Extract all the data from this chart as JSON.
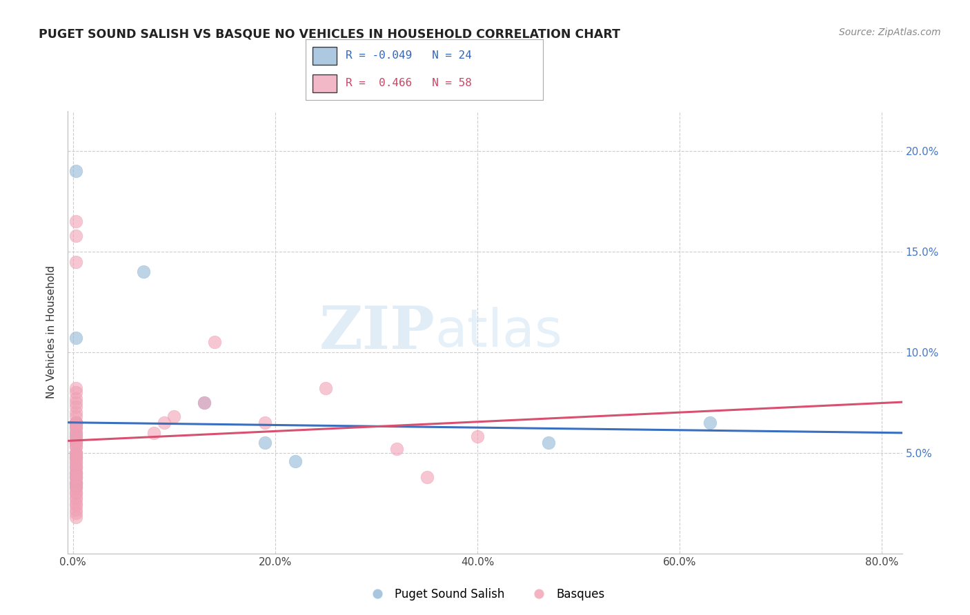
{
  "title": "PUGET SOUND SALISH VS BASQUE NO VEHICLES IN HOUSEHOLD CORRELATION CHART",
  "source": "Source: ZipAtlas.com",
  "ylabel": "No Vehicles in Household",
  "ylim": [
    0.0,
    0.22
  ],
  "xlim": [
    -0.005,
    0.82
  ],
  "yticks": [
    0.05,
    0.1,
    0.15,
    0.2
  ],
  "ytick_labels": [
    "5.0%",
    "10.0%",
    "15.0%",
    "20.0%"
  ],
  "xticks": [
    0.0,
    0.2,
    0.4,
    0.6,
    0.8
  ],
  "xtick_labels": [
    "0.0%",
    "20.0%",
    "40.0%",
    "60.0%",
    "80.0%"
  ],
  "grid_color": "#cccccc",
  "blue_color": "#92b8d8",
  "pink_color": "#f0a0b5",
  "blue_line_color": "#3a6fbf",
  "pink_line_color": "#d85070",
  "blue_R": -0.049,
  "blue_N": 24,
  "pink_R": 0.466,
  "pink_N": 58,
  "legend_label_blue": "Puget Sound Salish",
  "legend_label_pink": "Basques",
  "watermark_zip": "ZIP",
  "watermark_atlas": "atlas",
  "blue_scatter_x": [
    0.003,
    0.003,
    0.003,
    0.003,
    0.003,
    0.003,
    0.003,
    0.003,
    0.003,
    0.003,
    0.003,
    0.003,
    0.003,
    0.003,
    0.003,
    0.003,
    0.07,
    0.13,
    0.19,
    0.22,
    0.47,
    0.63,
    0.003,
    0.003
  ],
  "blue_scatter_y": [
    0.19,
    0.107,
    0.065,
    0.065,
    0.065,
    0.065,
    0.063,
    0.06,
    0.058,
    0.055,
    0.05,
    0.048,
    0.043,
    0.04,
    0.038,
    0.035,
    0.14,
    0.075,
    0.055,
    0.046,
    0.055,
    0.065,
    0.035,
    0.033
  ],
  "pink_scatter_x": [
    0.003,
    0.003,
    0.003,
    0.003,
    0.003,
    0.003,
    0.003,
    0.003,
    0.003,
    0.003,
    0.003,
    0.003,
    0.003,
    0.003,
    0.003,
    0.003,
    0.003,
    0.003,
    0.003,
    0.003,
    0.003,
    0.003,
    0.003,
    0.003,
    0.003,
    0.003,
    0.003,
    0.003,
    0.003,
    0.003,
    0.003,
    0.003,
    0.003,
    0.003,
    0.003,
    0.003,
    0.003,
    0.003,
    0.003,
    0.003,
    0.003,
    0.003,
    0.003,
    0.003,
    0.003,
    0.003,
    0.003,
    0.003,
    0.08,
    0.09,
    0.1,
    0.13,
    0.14,
    0.19,
    0.25,
    0.32,
    0.35,
    0.4
  ],
  "pink_scatter_y": [
    0.165,
    0.158,
    0.145,
    0.082,
    0.08,
    0.077,
    0.075,
    0.073,
    0.07,
    0.068,
    0.065,
    0.065,
    0.065,
    0.063,
    0.062,
    0.06,
    0.058,
    0.056,
    0.055,
    0.055,
    0.053,
    0.053,
    0.05,
    0.05,
    0.048,
    0.048,
    0.047,
    0.045,
    0.045,
    0.043,
    0.042,
    0.04,
    0.04,
    0.038,
    0.038,
    0.036,
    0.035,
    0.033,
    0.032,
    0.03,
    0.03,
    0.028,
    0.027,
    0.025,
    0.024,
    0.022,
    0.02,
    0.018,
    0.06,
    0.065,
    0.068,
    0.075,
    0.105,
    0.065,
    0.082,
    0.052,
    0.038,
    0.058
  ]
}
